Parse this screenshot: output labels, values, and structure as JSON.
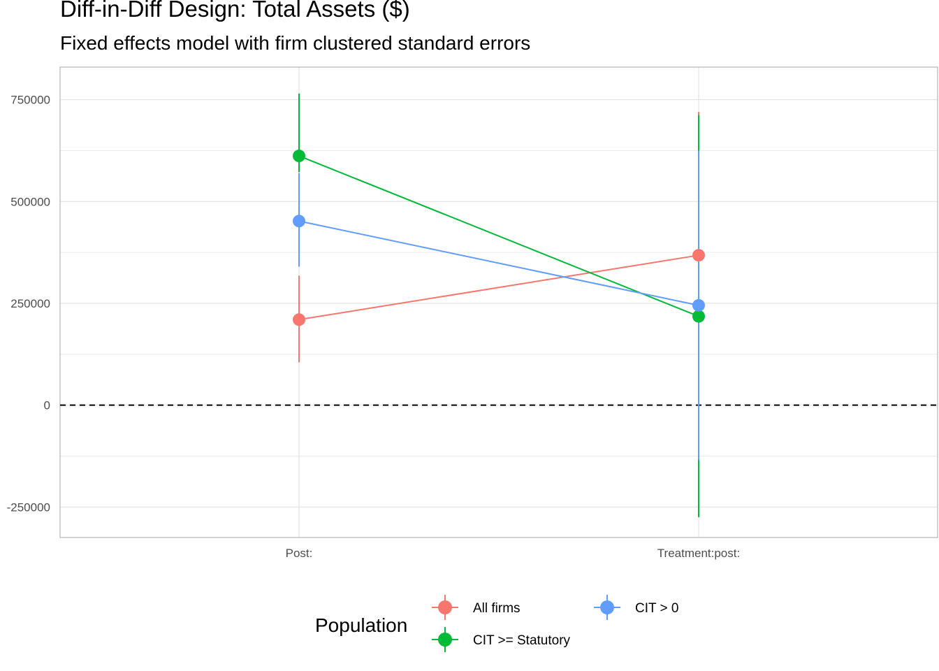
{
  "title": "Diff-in-Diff Design: Total Assets ($)",
  "subtitle": "Fixed effects model with firm clustered standard errors",
  "chart_data": {
    "type": "scatter",
    "title": "Diff-in-Diff Design: Total Assets ($)",
    "subtitle": "Fixed effects model with firm clustered standard errors",
    "xlabel": "",
    "ylabel": "",
    "categories": [
      "Post:",
      "Treatment:post:"
    ],
    "y_ticks": [
      -250000,
      0,
      250000,
      500000,
      750000
    ],
    "y_tick_labels": [
      "-250000",
      "0",
      "250000",
      "500000",
      "750000"
    ],
    "ylim": [
      -325000,
      830000
    ],
    "grid": true,
    "reference_line": {
      "y": 0,
      "style": "dashed"
    },
    "legend": {
      "title": "Population",
      "position": "bottom"
    },
    "series": [
      {
        "name": "All firms",
        "color": "#F8766D",
        "values": [
          210000,
          368000
        ],
        "lower": [
          105000,
          20000
        ],
        "upper": [
          318000,
          720000
        ]
      },
      {
        "name": "CIT >= Statutory",
        "color": "#00BA38",
        "values": [
          612000,
          218000
        ],
        "lower": [
          572000,
          -275000
        ],
        "upper": [
          765000,
          712000
        ]
      },
      {
        "name": "CIT > 0",
        "color": "#619CFF",
        "values": [
          452000,
          245000
        ],
        "lower": [
          340000,
          -135000
        ],
        "upper": [
          570000,
          625000
        ]
      }
    ]
  }
}
